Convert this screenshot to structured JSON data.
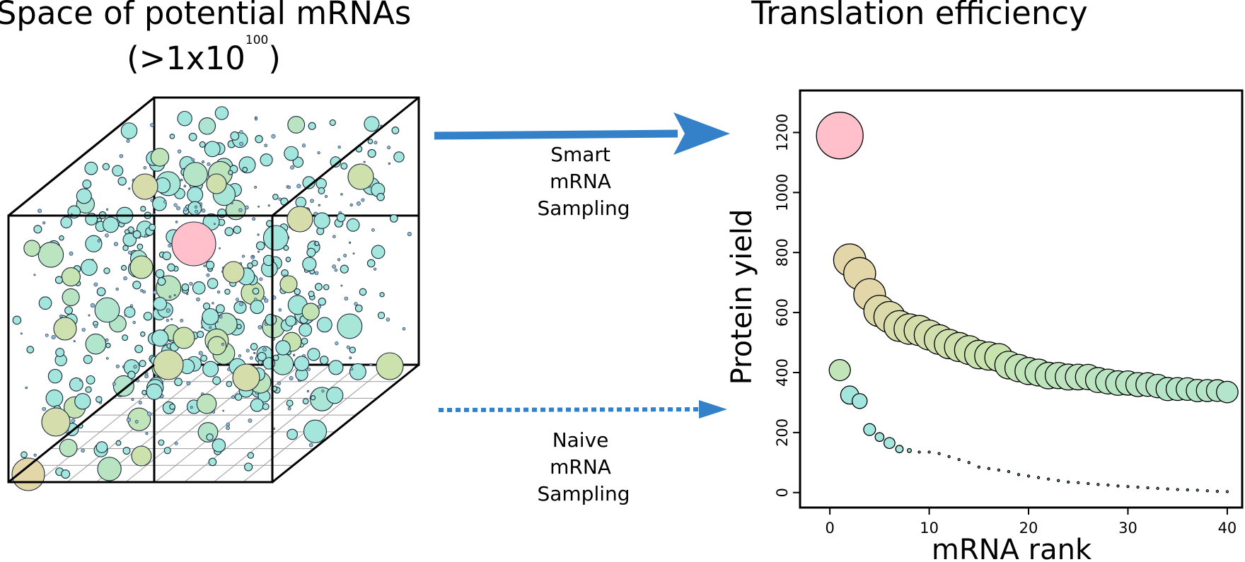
{
  "left_title_line1": "Space of potential mRNAs",
  "left_title_base": "(>1x10",
  "left_title_exponent": "100",
  "left_title_close": ")",
  "right_title": "Translation efficiency",
  "smart_label": [
    "Smart",
    "mRNA",
    "Sampling"
  ],
  "naive_label": [
    "Naive",
    "mRNA",
    "Sampling"
  ],
  "colors": {
    "arrow": "#3480c9",
    "top_pick": "#ffc0cb",
    "high_yield": "#e3d6a8",
    "mid_yield": "#c9e3ae",
    "bubble_cyan": "#a3e6de",
    "outline": "#000000"
  },
  "chart_data": {
    "type": "scatter",
    "title": "Translation efficiency",
    "xlabel": "mRNA rank",
    "ylabel": "Protein yield",
    "xlim": [
      -3,
      41.5
    ],
    "ylim": [
      -50,
      1340
    ],
    "xticks": [
      0,
      10,
      20,
      30,
      40
    ],
    "yticks": [
      0,
      200,
      400,
      600,
      800,
      1000,
      1200
    ],
    "grid": false,
    "series": [
      {
        "x": [
          1,
          2,
          3,
          4,
          5,
          6,
          7,
          8,
          9,
          10,
          11,
          12,
          13,
          14,
          15,
          16,
          17,
          18,
          19,
          20,
          21,
          22,
          23,
          24,
          25,
          26,
          27,
          28,
          29,
          30,
          31,
          32,
          33,
          34,
          35,
          36,
          37,
          38,
          39,
          40
        ],
        "y": [
          1190,
          775,
          730,
          660,
          605,
          585,
          555,
          545,
          540,
          525,
          510,
          495,
          485,
          475,
          460,
          455,
          450,
          425,
          415,
          405,
          400,
          390,
          390,
          385,
          385,
          385,
          375,
          370,
          365,
          365,
          360,
          360,
          355,
          345,
          345,
          345,
          340,
          340,
          340,
          335
        ]
      },
      {
        "x": [
          1,
          2,
          3,
          4,
          5,
          6,
          7,
          8,
          9,
          10,
          11,
          12,
          13,
          14,
          15,
          16,
          17,
          18,
          19,
          20,
          21,
          22,
          23,
          24,
          25,
          26,
          27,
          28,
          29,
          30,
          31,
          32,
          33,
          34,
          35,
          36,
          37,
          38,
          39,
          40
        ],
        "y": [
          408,
          325,
          305,
          210,
          185,
          165,
          145,
          140,
          135,
          135,
          130,
          120,
          110,
          100,
          85,
          80,
          75,
          70,
          60,
          55,
          50,
          45,
          40,
          35,
          33,
          30,
          27,
          25,
          22,
          20,
          18,
          16,
          14,
          12,
          10,
          9,
          8,
          6,
          4,
          3
        ]
      }
    ]
  }
}
